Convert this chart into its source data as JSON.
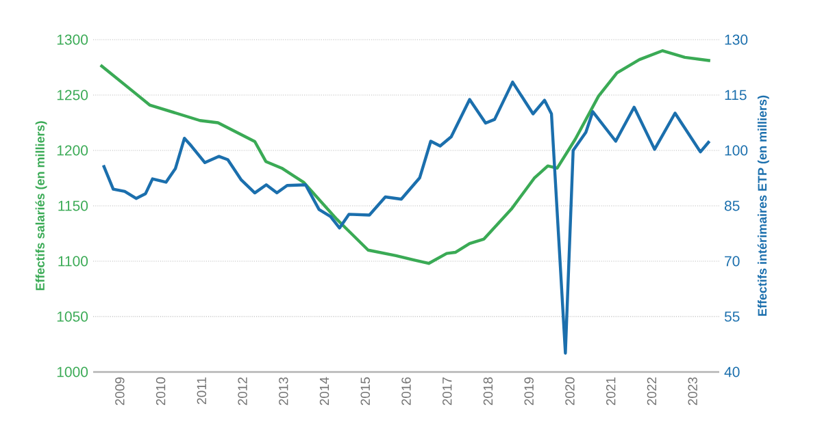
{
  "chart_data": {
    "type": "line",
    "ylabel": "Effectifs salariés (en milliers)",
    "y2label": "Effectifs intérimaires ETP (en milliers)",
    "xlim": [
      2008.35,
      2023.65
    ],
    "xticks": [
      2009,
      2010,
      2011,
      2012,
      2013,
      2014,
      2015,
      2016,
      2017,
      2018,
      2019,
      2020,
      2021,
      2022,
      2023
    ],
    "ylim": [
      1000,
      1300
    ],
    "yticks": [
      1000,
      1050,
      1100,
      1150,
      1200,
      1250,
      1300
    ],
    "y2lim": [
      40,
      130
    ],
    "y2ticks": [
      40,
      55,
      70,
      85,
      100,
      115,
      130
    ],
    "grid": "y",
    "series": [
      {
        "color": "#3aaa55",
        "x": [
          2008.53,
          2009.4,
          2009.73,
          2010.96,
          2011.4,
          2012.3,
          2012.57,
          2012.96,
          2013.5,
          2014.3,
          2015.07,
          2015.75,
          2016.2,
          2016.55,
          2016.99,
          2017.2,
          2017.55,
          2017.9,
          2018.57,
          2019.13,
          2019.46,
          2019.69,
          2020.13,
          2020.7,
          2021.15,
          2021.7,
          2022.26,
          2022.81,
          2023.43
        ],
        "values": [
          1277,
          1251,
          1241,
          1227,
          1225,
          1208,
          1190,
          1184,
          1171,
          1138,
          1110,
          1105,
          1101,
          1098,
          1107,
          1108,
          1116,
          1120,
          1147,
          1175,
          1186,
          1184,
          1210,
          1249,
          1270,
          1282,
          1290,
          1284,
          1281
        ]
      },
      {
        "color": "#1b6fad",
        "axis": "y2",
        "x": [
          2008.6,
          2008.84,
          2009.12,
          2009.4,
          2009.63,
          2009.8,
          2010.13,
          2010.36,
          2010.58,
          2010.75,
          2011.08,
          2011.42,
          2011.64,
          2011.97,
          2012.3,
          2012.58,
          2012.84,
          2013.09,
          2013.54,
          2013.87,
          2014.15,
          2014.37,
          2014.6,
          2015.1,
          2015.49,
          2015.88,
          2016.33,
          2016.6,
          2016.83,
          2017.1,
          2017.55,
          2017.94,
          2018.16,
          2018.6,
          2019.1,
          2019.38,
          2019.55,
          2019.89,
          2020.08,
          2020.39,
          2020.56,
          2021.12,
          2021.57,
          2022.07,
          2022.57,
          2023.19,
          2023.41
        ],
        "values": [
          96.0,
          89.5,
          88.9,
          87.0,
          88.3,
          92.3,
          91.4,
          95.1,
          103.3,
          101.2,
          96.7,
          98.4,
          97.5,
          92.0,
          88.5,
          90.7,
          88.5,
          90.5,
          90.7,
          84.0,
          82.1,
          79.0,
          82.7,
          82.5,
          87.4,
          86.8,
          92.6,
          102.5,
          101.2,
          103.7,
          113.8,
          107.4,
          108.4,
          118.5,
          109.9,
          113.6,
          109.9,
          45.1,
          100.0,
          104.9,
          110.5,
          102.5,
          111.7,
          100.3,
          110.1,
          99.6,
          102.5
        ]
      }
    ]
  }
}
